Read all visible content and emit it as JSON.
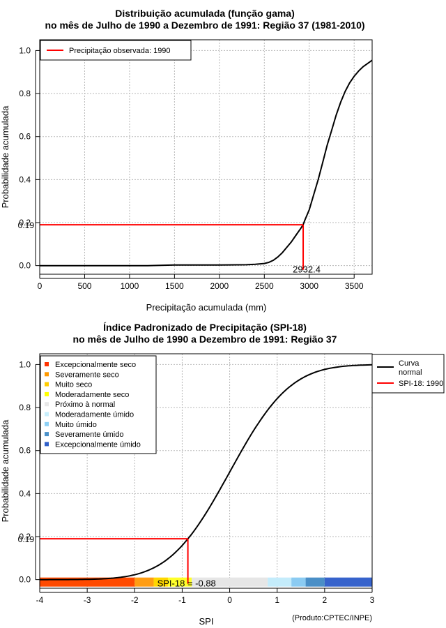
{
  "chart_data": [
    {
      "type": "line",
      "title_line1": "Distribuição acumulada (função gama)",
      "title_line2": "no mês de Julho de 1990 a Dezembro de 1991: Região 37 (1981-2010)",
      "xlabel": "Precipitação acumulada (mm)",
      "ylabel": "Probabilidade acumulada",
      "xlim": [
        0,
        3700
      ],
      "ylim": [
        -0.04,
        1.05
      ],
      "xticks": [
        0,
        500,
        1000,
        1500,
        2000,
        2500,
        3000,
        3500
      ],
      "yticks": [
        "0.0",
        "0.2",
        "0.4",
        "0.6",
        "0.8",
        "1.0"
      ],
      "grid": true,
      "legend": {
        "position": "top-left",
        "label": "Precipitação observada: 1990"
      },
      "series": [
        {
          "name": "Distribuição gama",
          "x": [
            0,
            1200,
            1500,
            2000,
            2300,
            2400,
            2500,
            2550,
            2600,
            2650,
            2700,
            2750,
            2800,
            2850,
            2900,
            2932.4,
            2950,
            3000,
            3050,
            3100,
            3150,
            3200,
            3250,
            3300,
            3350,
            3400,
            3450,
            3500,
            3550,
            3600,
            3650,
            3700
          ],
          "y": [
            0.0,
            0.0,
            0.003,
            0.003,
            0.004,
            0.006,
            0.01,
            0.015,
            0.025,
            0.04,
            0.06,
            0.085,
            0.11,
            0.14,
            0.17,
            0.19,
            0.21,
            0.26,
            0.33,
            0.4,
            0.48,
            0.56,
            0.63,
            0.7,
            0.76,
            0.81,
            0.85,
            0.88,
            0.905,
            0.925,
            0.94,
            0.955
          ]
        }
      ],
      "observed": {
        "x": 2932.4,
        "y": 0.19,
        "x_label": "2932.4",
        "y_label": "0.19"
      }
    },
    {
      "type": "line",
      "title_line1": "Índice Padronizado de Precipitação (SPI-18)",
      "title_line2": "no mês de Julho de 1990 a Dezembro de 1991: Região 37",
      "xlabel": "SPI",
      "ylabel": "Probabilidade acumulada",
      "xlim": [
        -4,
        3
      ],
      "ylim": [
        -0.04,
        1.05
      ],
      "xticks": [
        "-4",
        "-3",
        "-2",
        "-1",
        "0",
        "1",
        "2",
        "3"
      ],
      "yticks": [
        "0.0",
        "0.2",
        "0.4",
        "0.6",
        "0.8",
        "1.0"
      ],
      "grid": true,
      "series": [
        {
          "name": "Curva normal",
          "type": "normal_cdf",
          "x_from": -4,
          "x_to": 3
        }
      ],
      "observed": {
        "x": -0.88,
        "y": 0.19,
        "y_label": "0.19",
        "label": "SPI-18 = -0.88"
      },
      "category_legend": [
        {
          "label": "Excepcionalmente seco",
          "color": "#ff3300"
        },
        {
          "label": "Severamente seco",
          "color": "#ff9900"
        },
        {
          "label": "Muito seco",
          "color": "#ffcc00"
        },
        {
          "label": "Moderadamente seco",
          "color": "#ffff00"
        },
        {
          "label": "Próximo à normal",
          "color": "#e8e8e8"
        },
        {
          "label": "Moderadamente úmido",
          "color": "#c8eefc"
        },
        {
          "label": "Muito úmido",
          "color": "#8dd0f5"
        },
        {
          "label": "Severamente úmido",
          "color": "#4a90c8"
        },
        {
          "label": "Excepcionalmente úmido",
          "color": "#3060c8"
        }
      ],
      "category_bands": [
        {
          "from": -4.0,
          "to": -2.0,
          "color": "#ff4a00"
        },
        {
          "from": -2.0,
          "to": -1.6,
          "color": "#ff9d14"
        },
        {
          "from": -1.6,
          "to": -1.3,
          "color": "#ffd700"
        },
        {
          "from": -1.3,
          "to": -0.8,
          "color": "#ffff2a"
        },
        {
          "from": -0.8,
          "to": 0.8,
          "color": "#e6e6e6"
        },
        {
          "from": 0.8,
          "to": 1.3,
          "color": "#c4ecfb"
        },
        {
          "from": 1.3,
          "to": 1.6,
          "color": "#8bcbf2"
        },
        {
          "from": 1.6,
          "to": 2.0,
          "color": "#4a8fc7"
        },
        {
          "from": 2.0,
          "to": 3.0,
          "color": "#3763cc"
        }
      ],
      "legend_right": {
        "curve_label_line1": "Curva",
        "curve_label_line2": "normal",
        "spi_label": "SPI-18: 1990"
      },
      "credit": "(Produto:CPTEC/INPE)"
    }
  ]
}
